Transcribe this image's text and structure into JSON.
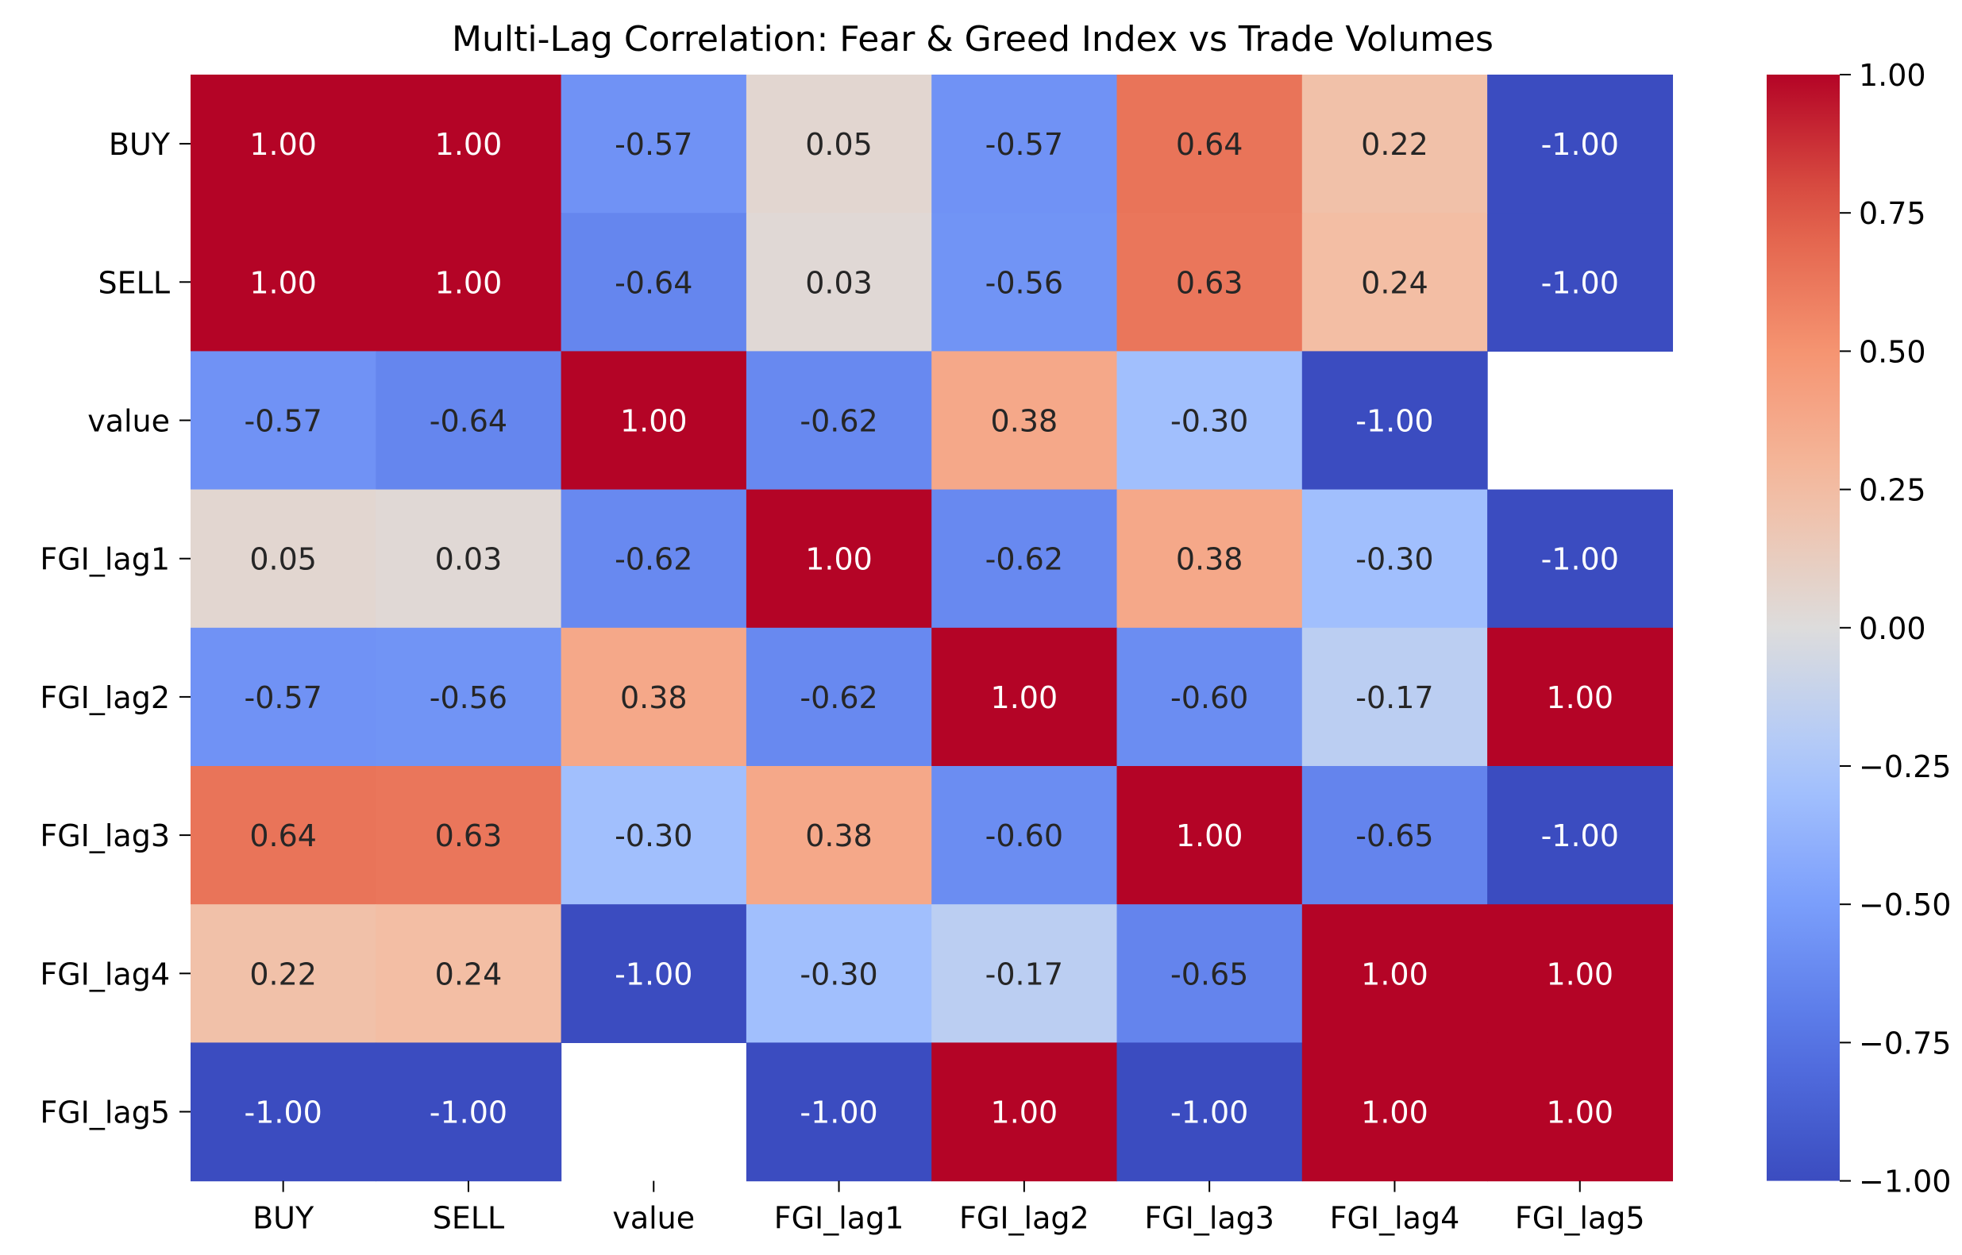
{
  "chart_data": {
    "type": "heatmap",
    "title": "Multi-Lag Correlation: Fear & Greed Index vs Trade Volumes",
    "xlabel": "",
    "ylabel": "",
    "row_labels": [
      "BUY",
      "SELL",
      "value",
      "FGI_lag1",
      "FGI_lag2",
      "FGI_lag3",
      "FGI_lag4",
      "FGI_lag5"
    ],
    "col_labels": [
      "BUY",
      "SELL",
      "value",
      "FGI_lag1",
      "FGI_lag2",
      "FGI_lag3",
      "FGI_lag4",
      "FGI_lag5"
    ],
    "values": [
      [
        1.0,
        1.0,
        -0.57,
        0.05,
        -0.57,
        0.64,
        0.22,
        -1.0
      ],
      [
        1.0,
        1.0,
        -0.64,
        0.03,
        -0.56,
        0.63,
        0.24,
        -1.0
      ],
      [
        -0.57,
        -0.64,
        1.0,
        -0.62,
        0.38,
        -0.3,
        -1.0,
        null
      ],
      [
        0.05,
        0.03,
        -0.62,
        1.0,
        -0.62,
        0.38,
        -0.3,
        -1.0
      ],
      [
        -0.57,
        -0.56,
        0.38,
        -0.62,
        1.0,
        -0.6,
        -0.17,
        1.0
      ],
      [
        0.64,
        0.63,
        -0.3,
        0.38,
        -0.6,
        1.0,
        -0.65,
        -1.0
      ],
      [
        0.22,
        0.24,
        -1.0,
        -0.3,
        -0.17,
        -0.65,
        1.0,
        1.0
      ],
      [
        -1.0,
        -1.0,
        null,
        -1.0,
        1.0,
        -1.0,
        1.0,
        1.0
      ]
    ],
    "value_format": "2 decimals",
    "colormap": "coolwarm",
    "vmin": -1.0,
    "vmax": 1.0,
    "colorbar": {
      "position": "right",
      "ticks": [
        1.0,
        0.75,
        0.5,
        0.25,
        0.0,
        -0.25,
        -0.5,
        -0.75,
        -1.0
      ],
      "tick_labels": [
        "1.00",
        "0.75",
        "0.50",
        "0.25",
        "0.00",
        "−0.25",
        "−0.50",
        "−0.75",
        "−1.00"
      ]
    },
    "grid": false
  }
}
